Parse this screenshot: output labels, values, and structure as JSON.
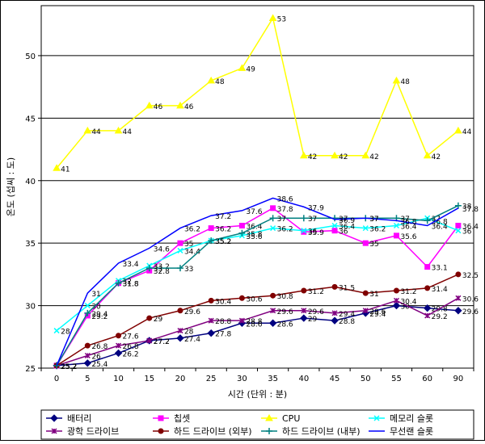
{
  "chart_data": {
    "type": "line",
    "xlabel": "시간 (단위 : 분)",
    "ylabel": "온도 (섭씨 : 도)",
    "ylim": [
      25,
      54
    ],
    "yticks": [
      25,
      30,
      35,
      40,
      45,
      50
    ],
    "grid": true,
    "legend_position": "bottom",
    "categories": [
      "0",
      "5",
      "10",
      "15",
      "20",
      "25",
      "30",
      "35",
      "40",
      "45",
      "50",
      "55",
      "60",
      "90"
    ],
    "series": [
      {
        "name": "배터리",
        "color": "#000080",
        "marker": "diamond",
        "values": [
          25.2,
          25.4,
          26.2,
          27.2,
          27.4,
          27.8,
          28.6,
          28.6,
          29,
          28.8,
          29.4,
          30,
          29.8,
          29.6
        ],
        "labels": [
          "25.2",
          "25.4",
          "26.2",
          "27.2",
          "27.4",
          "27.8",
          "28.6",
          "28.6",
          "29",
          "28.8",
          "29.4",
          "30",
          "29.8",
          "29.6"
        ]
      },
      {
        "name": "칩셋",
        "color": "#ff00ff",
        "marker": "square",
        "values": [
          25.2,
          29.2,
          31.8,
          32.8,
          35,
          36.2,
          36.4,
          37.8,
          35.9,
          36,
          35,
          35.6,
          33.1,
          36.4
        ],
        "labels": [
          "25.2",
          "29.2",
          "31.8",
          "32.8",
          "35",
          "36.2",
          "36.4",
          "37.8",
          "35.9",
          "36",
          "35",
          "35.6",
          "33.1",
          "36.4"
        ]
      },
      {
        "name": "CPU",
        "color": "#ffff00",
        "marker": "triangle",
        "values": [
          41,
          44,
          44,
          46,
          46,
          48,
          49,
          53,
          42,
          42,
          42,
          48,
          42,
          44
        ],
        "labels": [
          "41",
          "44",
          "44",
          "46",
          "46",
          "48",
          "49",
          "53",
          "42",
          "42",
          "42",
          "48",
          "42",
          "44"
        ]
      },
      {
        "name": "메모리 슬롯",
        "color": "#00ffff",
        "marker": "x",
        "values": [
          28,
          30,
          32,
          33.2,
          34.4,
          35.2,
          35.6,
          36.2,
          36,
          36.4,
          36.2,
          36.4,
          37,
          36
        ],
        "labels": [
          "28",
          "30",
          "32",
          "33.2",
          "34.4",
          "35.2",
          "35.6",
          "36.2",
          "36",
          "36.4",
          "36.2",
          "36.4",
          "37",
          "36"
        ]
      },
      {
        "name": "광학 드라이브",
        "color": "#800080",
        "marker": "star",
        "values": [
          25.2,
          26,
          26.8,
          27.2,
          28,
          28.8,
          28.8,
          29.6,
          29.6,
          29.4,
          29.6,
          30.4,
          29.2,
          30.6
        ],
        "labels": [
          "25.2",
          "26",
          "26.8",
          "27.2",
          "28",
          "28.8",
          "28.8",
          "29.6",
          "29.6",
          "29.4",
          "29.6",
          "30.4",
          "29.2",
          "30.6"
        ]
      },
      {
        "name": "하드 드라이브 (외부)",
        "color": "#800000",
        "marker": "circle",
        "values": [
          25.2,
          26.8,
          27.6,
          29,
          29.6,
          30.4,
          30.6,
          30.8,
          31.2,
          31.5,
          31,
          31.2,
          31.4,
          32.5
        ],
        "labels": [
          "25.2",
          "26.8",
          "27.6",
          "29",
          "29.6",
          "30.4",
          "30.6",
          "30.8",
          "31.2",
          "31.5",
          "31",
          "31.2",
          "31.4",
          "32.5"
        ]
      },
      {
        "name": "하드 드라이브 (내부)",
        "color": "#008080",
        "marker": "plus",
        "values": [
          25.2,
          29.4,
          31.8,
          33,
          33,
          35.2,
          35.8,
          37,
          37,
          37,
          37,
          37,
          36.8,
          38
        ],
        "labels": [
          "25.2",
          "29.4",
          "31.8",
          "33",
          "33",
          "35.2",
          "35.8",
          "37",
          "37",
          "37",
          "37",
          "37",
          "36.8",
          "38"
        ]
      },
      {
        "name": "무선랜 슬롯",
        "color": "#0000ff",
        "marker": "none",
        "values": [
          25.2,
          31,
          33.4,
          34.6,
          36.2,
          37.2,
          37.6,
          38.6,
          37.9,
          36.9,
          37,
          36.8,
          36.4,
          37.8
        ],
        "labels": [
          "25.2",
          "31",
          "33.4",
          "34.6",
          "36.2",
          "37.2",
          "37.6",
          "38.6",
          "37.9",
          "36.9",
          "37",
          "36.8",
          "36.4",
          "37.8"
        ]
      }
    ]
  }
}
